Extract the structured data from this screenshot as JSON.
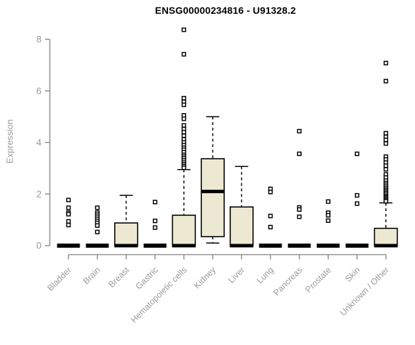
{
  "chart_data": {
    "type": "boxplot",
    "title": "ENSG00000234816 - U91328.2",
    "ylabel": "Expression",
    "xlabel": "",
    "yticks": [
      0,
      2,
      4,
      6,
      8
    ],
    "ylim": [
      0,
      8.6
    ],
    "grid": false,
    "legend": "none",
    "categories": [
      "Bladder",
      "Brain",
      "Breast",
      "Gastric",
      "Hematopoietic cells",
      "Kidney",
      "Liver",
      "Lung",
      "Pancreas",
      "Prostate",
      "Skin",
      "Unknown / Other"
    ],
    "boxes": [
      {
        "category": "Bladder",
        "low": 0,
        "q1": 0,
        "median": 0,
        "q3": 0,
        "high": 0,
        "outliers": [
          1.77,
          1.47,
          1.28,
          1.22,
          0.94,
          0.8
        ]
      },
      {
        "category": "Brain",
        "low": 0,
        "q1": 0,
        "median": 0,
        "q3": 0,
        "high": 0,
        "outliers": [
          1.47,
          1.28,
          1.2,
          1.12,
          1.04,
          0.96,
          0.88,
          0.78,
          0.53
        ]
      },
      {
        "category": "Breast",
        "low": 0,
        "q1": 0,
        "median": 0,
        "q3": 0.88,
        "high": 1.95,
        "outliers": []
      },
      {
        "category": "Gastric",
        "low": 0,
        "q1": 0,
        "median": 0,
        "q3": 0,
        "high": 0,
        "outliers": [
          1.69,
          0.96,
          0.7
        ]
      },
      {
        "category": "Hematopoietic cells",
        "low": 0,
        "q1": 0,
        "median": 0,
        "q3": 1.18,
        "high": 2.95,
        "outliers": [
          8.37,
          7.42,
          5.72,
          5.58,
          5.46,
          5.05,
          4.92,
          4.66,
          4.52,
          4.4,
          4.26,
          4.12,
          4.0,
          3.9,
          3.8,
          3.72,
          3.62,
          3.52,
          3.45,
          3.38,
          3.3,
          3.22,
          3.15,
          3.08,
          3.02
        ]
      },
      {
        "category": "Kidney",
        "low": 0.1,
        "q1": 0.35,
        "median": 2.1,
        "q3": 3.37,
        "high": 5.0,
        "outliers": []
      },
      {
        "category": "Liver",
        "low": 0,
        "q1": 0,
        "median": 0,
        "q3": 1.5,
        "high": 3.07,
        "outliers": []
      },
      {
        "category": "Lung",
        "low": 0,
        "q1": 0,
        "median": 0,
        "q3": 0,
        "high": 0,
        "outliers": [
          2.2,
          2.08,
          1.15,
          0.72
        ]
      },
      {
        "category": "Pancreas",
        "low": 0,
        "q1": 0,
        "median": 0,
        "q3": 0,
        "high": 0,
        "outliers": [
          4.44,
          3.56,
          1.48,
          1.4,
          1.12
        ]
      },
      {
        "category": "Prostate",
        "low": 0,
        "q1": 0,
        "median": 0,
        "q3": 0,
        "high": 0,
        "outliers": [
          1.71,
          1.28,
          1.18,
          0.97
        ]
      },
      {
        "category": "Skin",
        "low": 0,
        "q1": 0,
        "median": 0,
        "q3": 0,
        "high": 0,
        "outliers": [
          3.56,
          1.95,
          1.63
        ]
      },
      {
        "category": "Unknown / Other",
        "low": 0,
        "q1": 0,
        "median": 0,
        "q3": 0.67,
        "high": 1.66,
        "outliers": [
          7.08,
          6.38,
          4.36,
          4.22,
          4.1,
          3.96,
          3.45,
          3.34,
          3.22,
          3.1,
          2.96,
          2.76,
          2.64,
          2.52,
          2.43,
          2.36,
          2.29,
          2.22,
          2.16,
          2.1,
          2.04,
          1.98,
          1.92,
          1.87,
          1.82,
          1.77,
          1.72
        ]
      }
    ],
    "colors": {
      "box_fill": "#ede8d1",
      "box_stroke": "#000000",
      "median": "#000000",
      "whisker": "#000000",
      "outlier_stroke": "#000000",
      "outlier_fill": "#ffffff",
      "axis": "#7f7f7f",
      "tick_label": "#9b9b9b",
      "title": "#000000"
    }
  }
}
